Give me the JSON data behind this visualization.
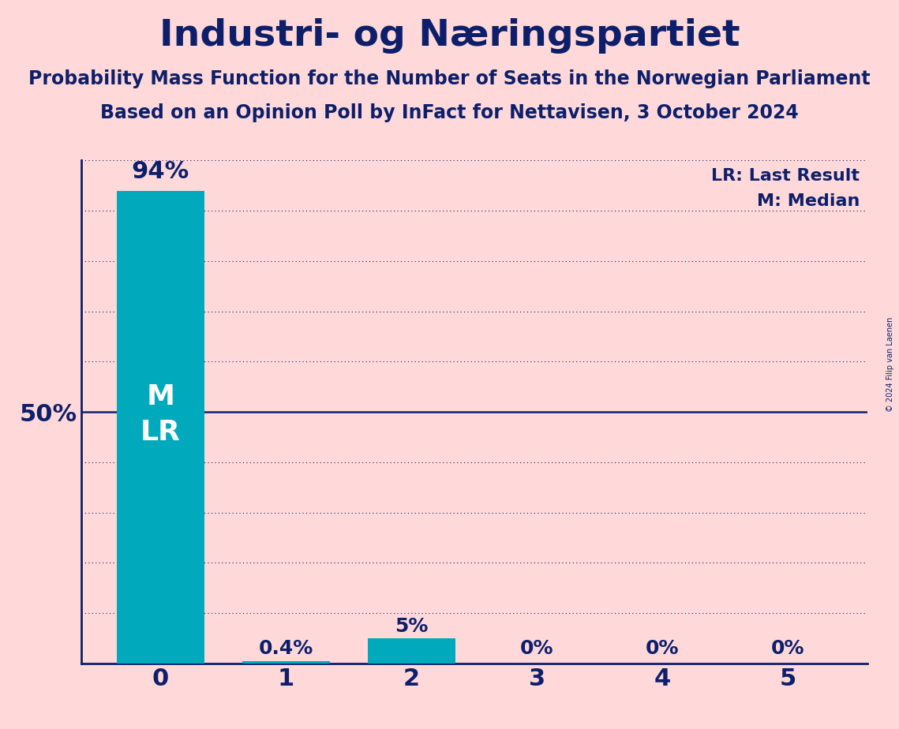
{
  "title": "Industri- og Næringspartiet",
  "subtitle1": "Probability Mass Function for the Number of Seats in the Norwegian Parliament",
  "subtitle2": "Based on an Opinion Poll by InFact for Nettavisen, 3 October 2024",
  "copyright": "© 2024 Filip van Laenen",
  "categories": [
    0,
    1,
    2,
    3,
    4,
    5
  ],
  "values": [
    0.94,
    0.004,
    0.05,
    0.0,
    0.0,
    0.0
  ],
  "bar_labels": [
    "94%",
    "0.4%",
    "5%",
    "0%",
    "0%",
    "0%"
  ],
  "bar_color": "#00AABC",
  "background_color": "#FFD9D9",
  "title_color": "#0D1F6B",
  "bar_label_color_inside": "#FFFFFF",
  "bar_label_color_outside": "#0D1F6B",
  "axis_color": "#0D1F6B",
  "grid_color": "#0D1F6B",
  "median_label": "M",
  "lr_label": "LR",
  "legend_lr": "LR: Last Result",
  "legend_m": "M: Median",
  "solid_line_color": "#0D1F6B",
  "ylim": [
    0,
    1.0
  ],
  "yticks": [
    0.0,
    0.1,
    0.2,
    0.3,
    0.4,
    0.5,
    0.6,
    0.7,
    0.8,
    0.9,
    1.0
  ],
  "ytick_labels": [
    "",
    "",
    "",
    "",
    "",
    "50%",
    "",
    "",
    "",
    "",
    ""
  ],
  "title_fontsize": 34,
  "subtitle_fontsize": 17,
  "axis_tick_fontsize": 22,
  "bar_label_fontsize": 18,
  "legend_fontsize": 16,
  "ylabel_fontsize": 22,
  "ml_label_fontsize": 26
}
